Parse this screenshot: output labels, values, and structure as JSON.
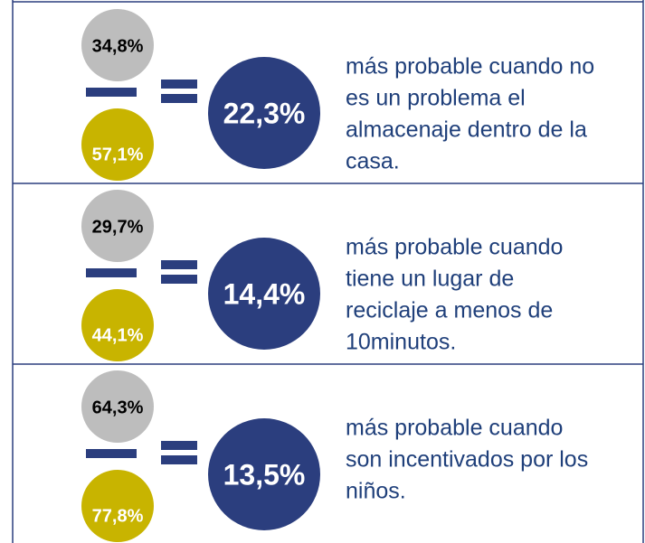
{
  "rows": [
    {
      "top": "34,8%",
      "bottom": "57,1%",
      "result": "22,3%",
      "lines": [
        "más probable cuando no",
        "es un problema el",
        "almacenaje dentro de la",
        "casa."
      ]
    },
    {
      "top": "29,7%",
      "bottom": "44,1%",
      "result": "14,4%",
      "lines": [
        "más probable cuando",
        "tiene un lugar de",
        "reciclaje a menos de",
        "10minutos."
      ]
    },
    {
      "top": "64,3%",
      "bottom": "77,8%",
      "result": "13,5%",
      "lines": [
        "más probable cuando",
        "son incentivados por los",
        "niños."
      ]
    }
  ]
}
